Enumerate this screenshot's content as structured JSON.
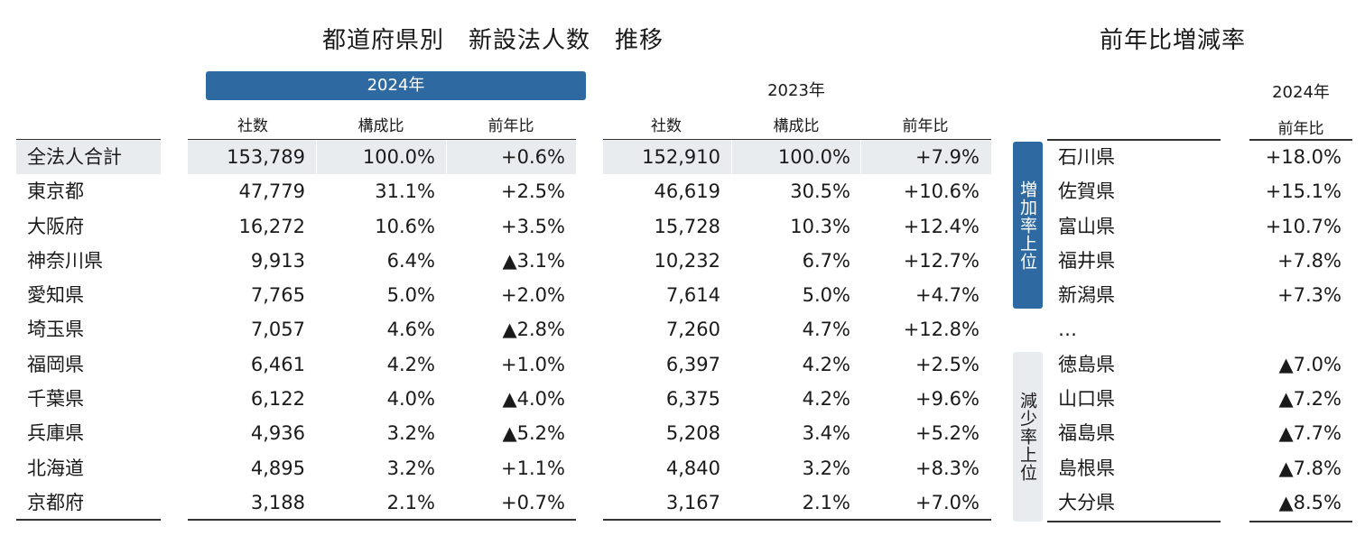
{
  "titles": {
    "main": "都道府県別　新設法人数　推移",
    "right": "前年比増減率"
  },
  "year2024": "2024年",
  "year2023": "2023年",
  "columns": {
    "count": "社数",
    "share": "構成比",
    "yoy": "前年比"
  },
  "rows": [
    {
      "name": "全法人合計",
      "c24": "153,789",
      "s24": "100.0%",
      "y24": "+0.6%",
      "c23": "152,910",
      "s23": "100.0%",
      "y23": "+7.9%"
    },
    {
      "name": "東京都",
      "c24": "47,779",
      "s24": "31.1%",
      "y24": "+2.5%",
      "c23": "46,619",
      "s23": "30.5%",
      "y23": "+10.6%"
    },
    {
      "name": "大阪府",
      "c24": "16,272",
      "s24": "10.6%",
      "y24": "+3.5%",
      "c23": "15,728",
      "s23": "10.3%",
      "y23": "+12.4%"
    },
    {
      "name": "神奈川県",
      "c24": "9,913",
      "s24": "6.4%",
      "y24": "▲3.1%",
      "c23": "10,232",
      "s23": "6.7%",
      "y23": "+12.7%"
    },
    {
      "name": "愛知県",
      "c24": "7,765",
      "s24": "5.0%",
      "y24": "+2.0%",
      "c23": "7,614",
      "s23": "5.0%",
      "y23": "+4.7%"
    },
    {
      "name": "埼玉県",
      "c24": "7,057",
      "s24": "4.6%",
      "y24": "▲2.8%",
      "c23": "7,260",
      "s23": "4.7%",
      "y23": "+12.8%"
    },
    {
      "name": "福岡県",
      "c24": "6,461",
      "s24": "4.2%",
      "y24": "+1.0%",
      "c23": "6,397",
      "s23": "4.2%",
      "y23": "+2.5%"
    },
    {
      "name": "千葉県",
      "c24": "6,122",
      "s24": "4.0%",
      "y24": "▲4.0%",
      "c23": "6,375",
      "s23": "4.2%",
      "y23": "+9.6%"
    },
    {
      "name": "兵庫県",
      "c24": "4,936",
      "s24": "3.2%",
      "y24": "▲5.2%",
      "c23": "5,208",
      "s23": "3.4%",
      "y23": "+5.2%"
    },
    {
      "name": "北海道",
      "c24": "4,895",
      "s24": "3.2%",
      "y24": "+1.1%",
      "c23": "4,840",
      "s23": "3.2%",
      "y23": "+8.3%"
    },
    {
      "name": "京都府",
      "c24": "3,188",
      "s24": "2.1%",
      "y24": "+0.7%",
      "c23": "3,167",
      "s23": "2.1%",
      "y23": "+7.0%"
    }
  ],
  "right_panel": {
    "year": "2024年",
    "yoy_header": "前年比",
    "increase_label": "増加率上位",
    "decrease_label": "減少率上位",
    "increase": [
      {
        "name": "石川県",
        "value": "+18.0%"
      },
      {
        "name": "佐賀県",
        "value": "+15.1%"
      },
      {
        "name": "富山県",
        "value": "+10.7%"
      },
      {
        "name": "福井県",
        "value": "+7.8%"
      },
      {
        "name": "新潟県",
        "value": "+7.3%"
      }
    ],
    "ellipsis": "…",
    "decrease": [
      {
        "name": "徳島県",
        "value": "▲7.0%"
      },
      {
        "name": "山口県",
        "value": "▲7.2%"
      },
      {
        "name": "福島県",
        "value": "▲7.7%"
      },
      {
        "name": "島根県",
        "value": "▲7.8%"
      },
      {
        "name": "大分県",
        "value": "▲8.5%"
      }
    ]
  },
  "colors": {
    "accent": "#2e6aa1",
    "shade": "#e9ecef"
  }
}
